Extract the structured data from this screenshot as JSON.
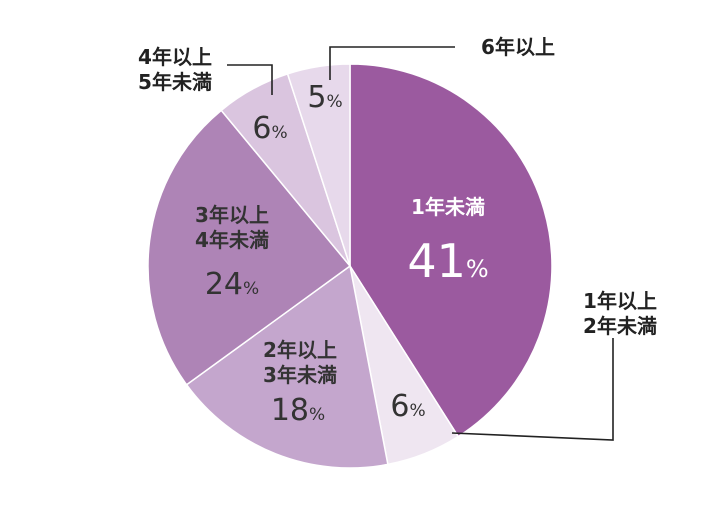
{
  "chart_data": {
    "type": "pie",
    "categories": [
      "1年未満",
      "1年以上 2年未満",
      "2年以上 3年未満",
      "3年以上 4年未満",
      "4年以上 5年未満",
      "6年以上"
    ],
    "values": [
      41,
      6,
      18,
      24,
      6,
      5
    ],
    "unit": "%",
    "colors": [
      "#9b5a9f",
      "#efe6f1",
      "#c4a6cd",
      "#ae84b6",
      "#dac5df",
      "#e7d9eb"
    ],
    "slices": [
      {
        "label_lines": [
          "1年未満"
        ],
        "value_text": "41",
        "unit": "%"
      },
      {
        "label_lines": [
          "1年以上",
          "2年未満"
        ],
        "value_text": "6",
        "unit": "%"
      },
      {
        "label_lines": [
          "2年以上",
          "3年未満"
        ],
        "value_text": "18",
        "unit": "%"
      },
      {
        "label_lines": [
          "3年以上",
          "4年未満"
        ],
        "value_text": "24",
        "unit": "%"
      },
      {
        "label_lines": [
          "4年以上",
          "5年未満"
        ],
        "value_text": "6",
        "unit": "%"
      },
      {
        "label_lines": [
          "6年以上"
        ],
        "value_text": "5",
        "unit": "%"
      }
    ]
  }
}
